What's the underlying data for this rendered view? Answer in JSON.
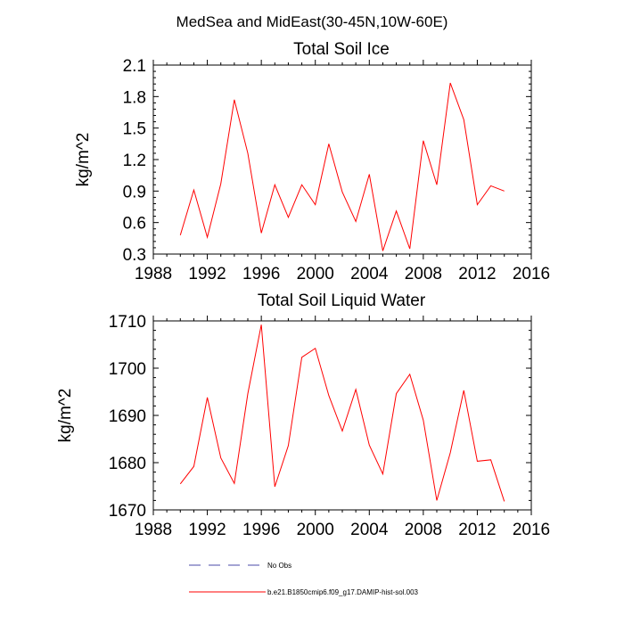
{
  "figure_title": "MedSea and MidEast(30-45N,10W-60E)",
  "chart_data": [
    {
      "type": "line",
      "title": "Total Soil Ice",
      "xlabel": "",
      "ylabel": "kg/m^2",
      "xlim": [
        1988,
        2016
      ],
      "ylim": [
        0.3,
        2.1
      ],
      "xticks": [
        1988,
        1992,
        1996,
        2000,
        2004,
        2008,
        2012,
        2016
      ],
      "yticks": [
        0.3,
        0.6,
        0.9,
        1.2,
        1.5,
        1.8,
        2.1
      ],
      "ytick_labels": [
        "0.3",
        "0.6",
        "0.9",
        "1.2",
        "1.5",
        "1.8",
        "2.1"
      ],
      "grid": false,
      "series": [
        {
          "color": "#ff0000",
          "x": [
            1990,
            1991,
            1992,
            1993,
            1994,
            1995,
            1996,
            1997,
            1998,
            1999,
            2000,
            2001,
            2002,
            2003,
            2004,
            2005,
            2006,
            2007,
            2008,
            2009,
            2010,
            2011,
            2012,
            2013,
            2014
          ],
          "values": [
            0.48,
            0.91,
            0.46,
            0.97,
            1.77,
            1.26,
            0.5,
            0.96,
            0.65,
            0.96,
            0.77,
            1.35,
            0.89,
            0.61,
            1.06,
            0.33,
            0.71,
            0.35,
            1.38,
            0.96,
            1.93,
            1.58,
            0.77,
            0.95,
            0.9
          ]
        }
      ]
    },
    {
      "type": "line",
      "title": "Total Soil Liquid Water",
      "xlabel": "",
      "ylabel": "kg/m^2",
      "xlim": [
        1988,
        2016
      ],
      "ylim": [
        1670,
        1710
      ],
      "xticks": [
        1988,
        1992,
        1996,
        2000,
        2004,
        2008,
        2012,
        2016
      ],
      "yticks": [
        1670,
        1680,
        1690,
        1700,
        1710
      ],
      "ytick_labels": [
        "1670",
        "1680",
        "1690",
        "1700",
        "1710"
      ],
      "grid": false,
      "series": [
        {
          "color": "#ff0000",
          "x": [
            1990,
            1991,
            1992,
            1993,
            1994,
            1995,
            1996,
            1997,
            1998,
            1999,
            2000,
            2001,
            2002,
            2003,
            2004,
            2005,
            2006,
            2007,
            2008,
            2009,
            2010,
            2011,
            2012,
            2013,
            2014
          ],
          "values": [
            1675.5,
            1679.2,
            1693.8,
            1681.0,
            1675.6,
            1694.6,
            1709.2,
            1674.9,
            1683.6,
            1702.3,
            1704.2,
            1694.2,
            1686.7,
            1695.5,
            1683.7,
            1677.6,
            1694.6,
            1698.7,
            1689.0,
            1672.0,
            1682.1,
            1695.3,
            1680.3,
            1680.6,
            1671.8
          ]
        }
      ]
    }
  ],
  "legend": [
    {
      "label": "No Obs",
      "color": "#4a4aa8",
      "style": "dashed"
    },
    {
      "label": "b.e21.B1850cmip6.f09_g17.DAMIP-hist-sol.003",
      "color": "#ff0000",
      "style": "solid"
    }
  ]
}
